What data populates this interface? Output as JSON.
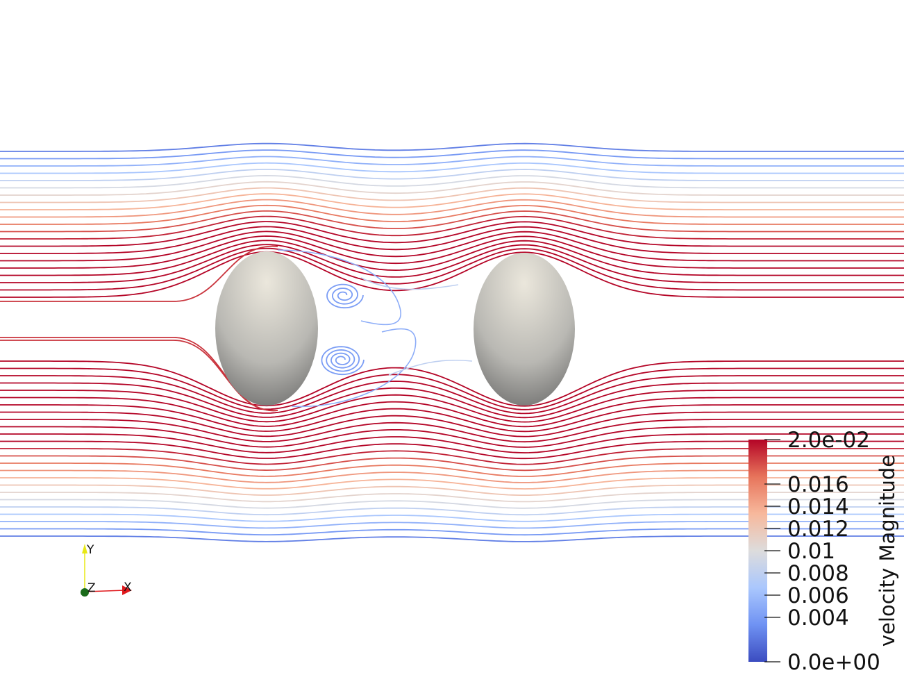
{
  "colorbar": {
    "title": "velocity Magnitude",
    "range": [
      0,
      0.02
    ],
    "ticks": [
      {
        "value": 0.02,
        "label": "2.0e-02"
      },
      {
        "value": 0.016,
        "label": "0.016"
      },
      {
        "value": 0.014,
        "label": "0.014"
      },
      {
        "value": 0.012,
        "label": "0.012"
      },
      {
        "value": 0.01,
        "label": "0.01"
      },
      {
        "value": 0.008,
        "label": "0.008"
      },
      {
        "value": 0.006,
        "label": "0.006"
      },
      {
        "value": 0.004,
        "label": "0.004"
      },
      {
        "value": 0.0,
        "label": "0.0e+00"
      }
    ],
    "colors": [
      "#3b4cc0",
      "#6f92f3",
      "#aac7fd",
      "#dddcdc",
      "#f7b89c",
      "#e7745b",
      "#b40426"
    ]
  },
  "axes_triad": {
    "x_label": "X",
    "y_label": "Y",
    "z_label": "Z",
    "x_color": "#e0181c",
    "y_color": "#e8e813",
    "z_color": "#1a6b1a"
  },
  "obstacles": {
    "count": 2,
    "shape": "ellipsoid",
    "color": "#c8c6c0"
  }
}
